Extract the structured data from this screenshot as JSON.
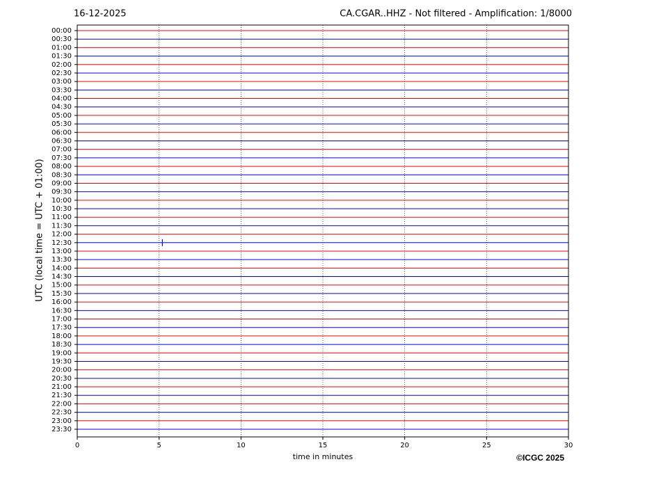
{
  "chart_data": {
    "type": "helicorder",
    "date": "16-12-2025",
    "title": "CA.CGAR..HHZ - Not filtered - Amplification: 1/8000",
    "y_label": "UTC (local time = UTC + 01:00)",
    "x_label": "time in minutes",
    "credit": "©ICGC 2025",
    "xlim": [
      0,
      30
    ],
    "xticks": [
      0,
      5,
      10,
      15,
      20,
      25,
      30
    ],
    "grid": true,
    "colors": [
      "#ff0000",
      "#0000ff"
    ],
    "rows": [
      "00:00",
      "00:30",
      "01:00",
      "01:30",
      "02:00",
      "02:30",
      "03:00",
      "03:30",
      "04:00",
      "04:30",
      "05:00",
      "05:30",
      "06:00",
      "06:30",
      "07:00",
      "07:30",
      "08:00",
      "08:30",
      "09:00",
      "09:30",
      "10:00",
      "10:30",
      "11:00",
      "11:30",
      "12:00",
      "12:30",
      "13:00",
      "13:30",
      "14:00",
      "14:30",
      "15:00",
      "15:30",
      "16:00",
      "16:30",
      "17:00",
      "17:30",
      "18:00",
      "18:30",
      "19:00",
      "19:30",
      "20:00",
      "20:30",
      "21:00",
      "21:30",
      "22:00",
      "22:30",
      "23:00",
      "23:30"
    ],
    "events": [
      {
        "row": 25,
        "x": 5.2
      }
    ]
  }
}
